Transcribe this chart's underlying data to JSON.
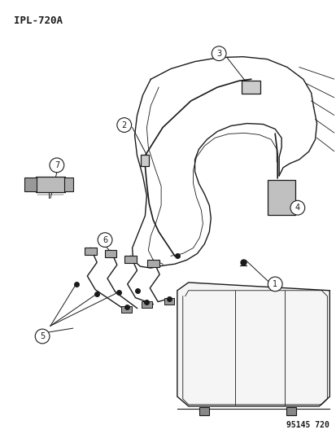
{
  "title": "IPL-720A",
  "part_number": "95145 720",
  "bg_color": "#ffffff",
  "line_color": "#1a1a1a",
  "fig_width": 4.14,
  "fig_height": 5.33,
  "dpi": 100
}
